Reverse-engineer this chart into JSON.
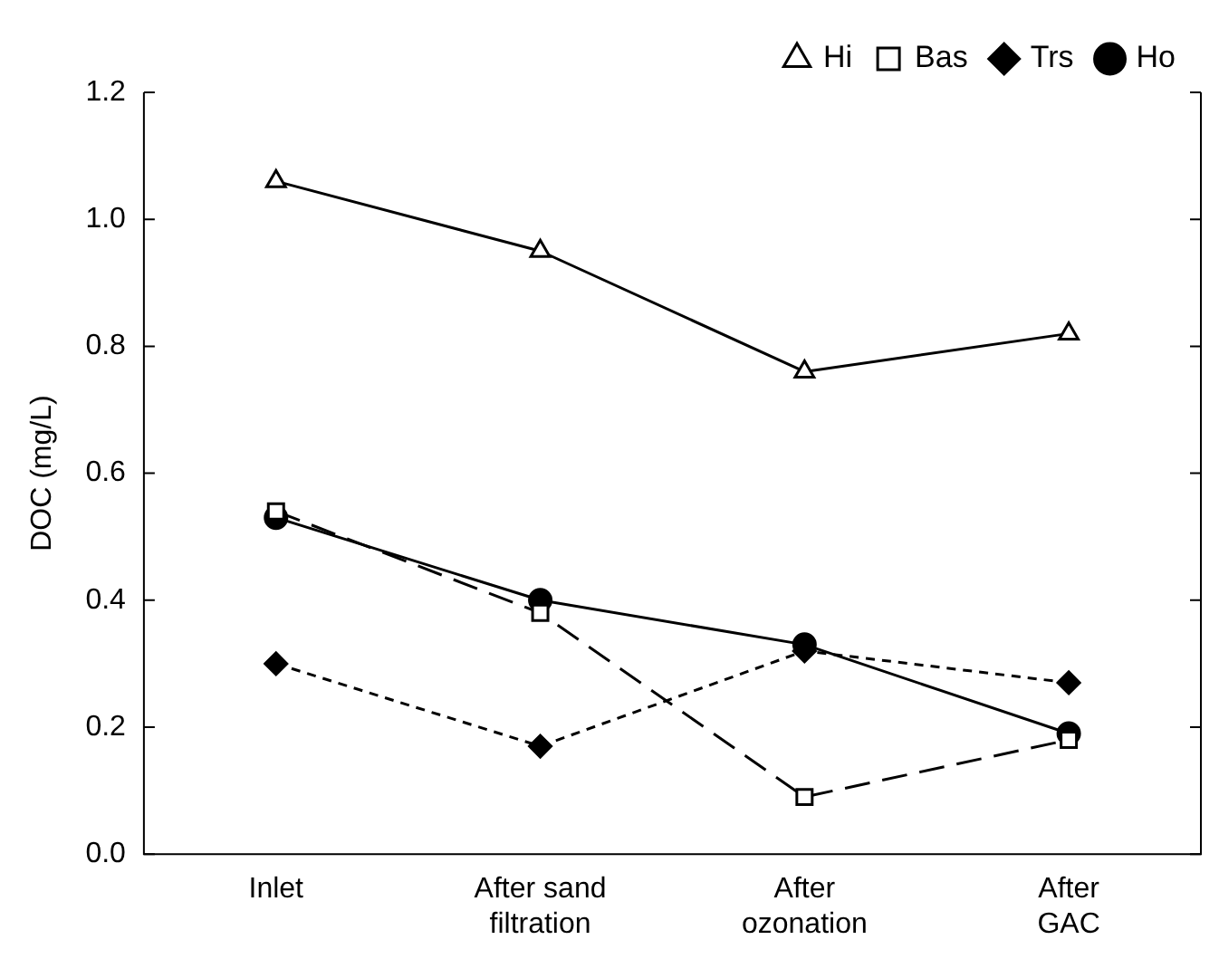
{
  "chart_data": {
    "type": "line",
    "ylabel": "DOC (mg/L)",
    "categories": [
      "Inlet",
      "After sand filtration",
      "After ozonation",
      "After GAC"
    ],
    "ylim": [
      0,
      1.2
    ],
    "yticks": [
      {
        "value": 0,
        "label": "0.0"
      },
      0.2,
      0.4,
      0.6,
      0.8,
      {
        "value": 1,
        "label": "1.0"
      },
      1.2
    ],
    "grid": false,
    "legend": "top right",
    "series": [
      {
        "name": "Ho",
        "color": "#000000",
        "marker": "circle",
        "line_style": "solid",
        "values": [
          0.53,
          0.4,
          0.33,
          0.19
        ]
      },
      {
        "name": "Trs",
        "color": "#000000",
        "marker": "diamond",
        "line_style": "dotted",
        "values": [
          0.3,
          0.17,
          0.32,
          0.27
        ]
      },
      {
        "name": "Bas",
        "color": "#000000",
        "marker": "square",
        "line_style": "dashed",
        "values": [
          0.54,
          0.38,
          0.09,
          0.18
        ]
      },
      {
        "name": "Hi",
        "color": "#000000",
        "marker": "triangle",
        "line_style": "solid",
        "values": [
          1.06,
          0.95,
          0.76,
          0.82
        ]
      }
    ]
  }
}
